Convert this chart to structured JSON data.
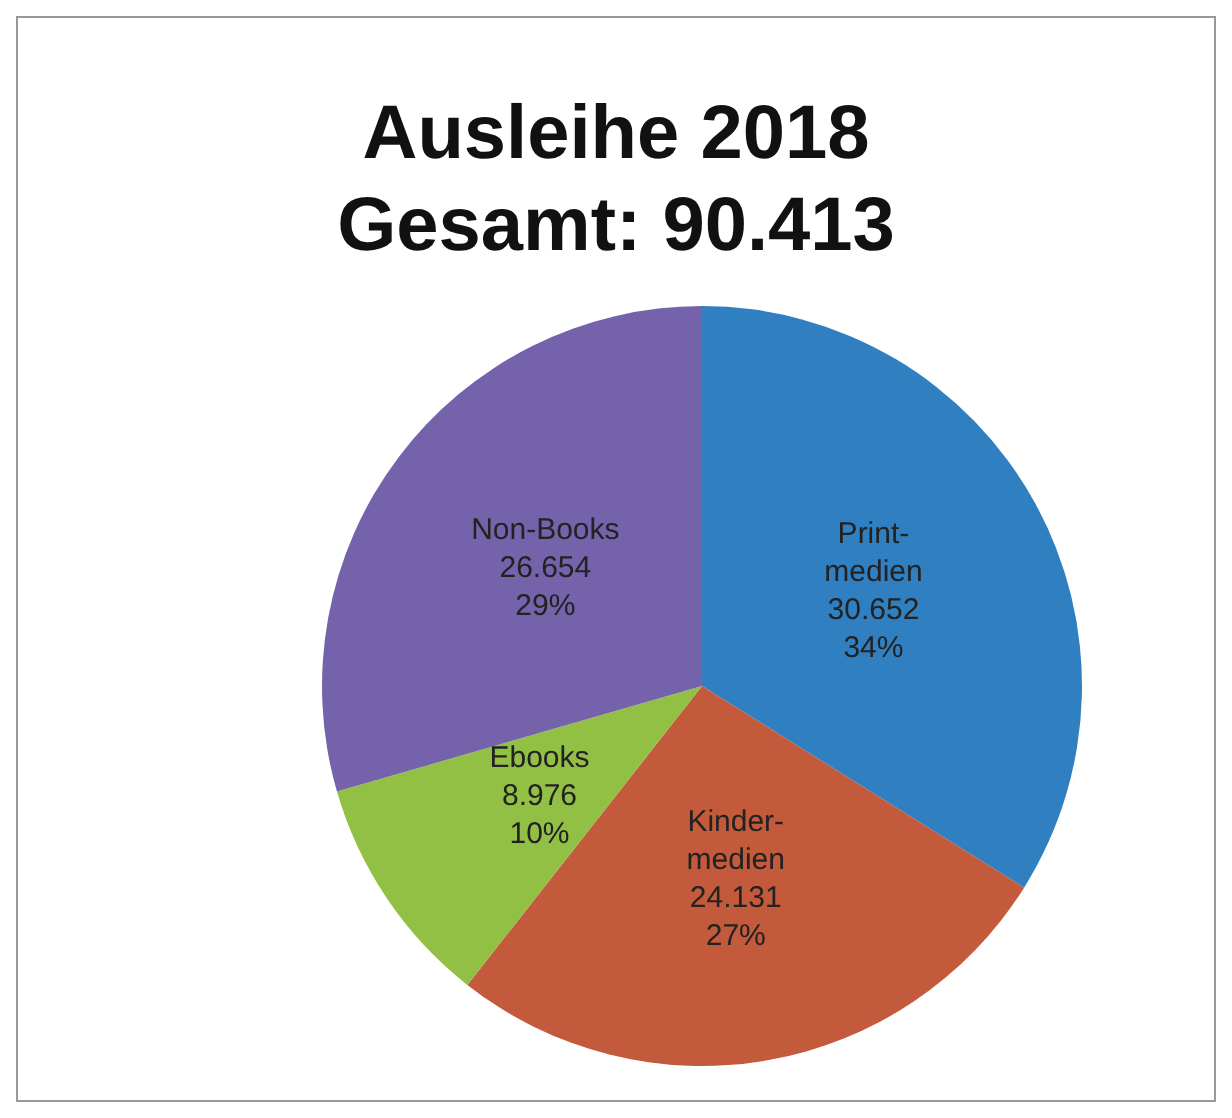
{
  "chart_data": {
    "type": "pie",
    "title": "Ausleihe 2018",
    "subtitle": "Gesamt: 90.413",
    "categories": [
      "Print-\nmedien",
      "Kinder-\nmedien",
      "Ebooks",
      "Non-Books"
    ],
    "values": [
      30652,
      24131,
      8976,
      26654
    ],
    "colors": [
      "#2f7fc1",
      "#c45a3c",
      "#92c045",
      "#7462ab"
    ],
    "value_labels": [
      "30.652\n34%",
      "24.131\n27%",
      "8.976\n10%",
      "26.654\n29%"
    ]
  }
}
